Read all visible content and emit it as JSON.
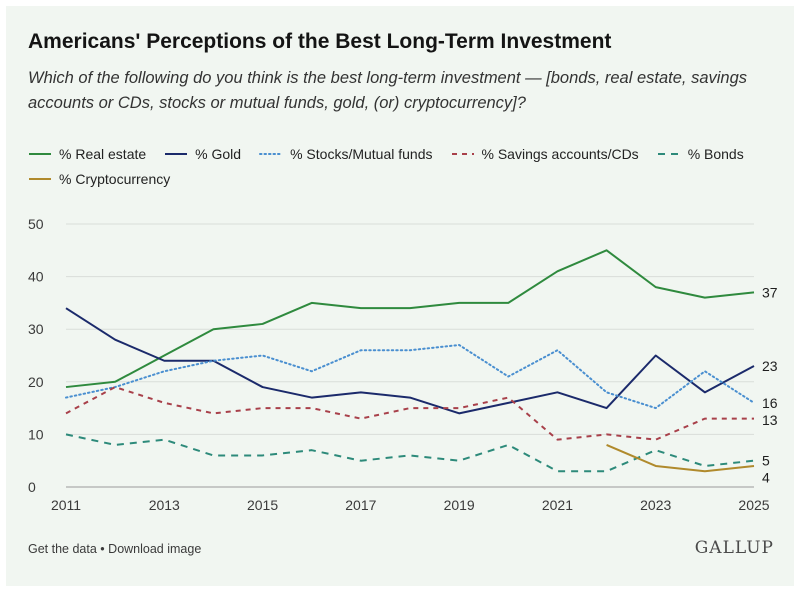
{
  "header": {
    "title": "Americans' Perceptions of the Best Long-Term Investment",
    "subtitle": "Which of the following do you think is the best long-term investment — [bonds, real estate, savings accounts or CDs, stocks or mutual funds, gold, (or) cryptocurrency]?"
  },
  "footer": {
    "get_data": "Get the data",
    "separator": "•",
    "download": "Download image",
    "brand": "GALLUP"
  },
  "chart_data": {
    "type": "line",
    "title": "Americans' Perceptions of the Best Long-Term Investment",
    "xlabel": "",
    "ylabel": "",
    "xlim": [
      2011,
      2025
    ],
    "ylim": [
      0,
      50
    ],
    "x_ticks": [
      2011,
      2013,
      2015,
      2017,
      2019,
      2021,
      2023,
      2025
    ],
    "y_ticks": [
      0,
      10,
      20,
      30,
      40,
      50
    ],
    "grid": "horizontal",
    "legend_position": "top-left",
    "series": [
      {
        "name": "% Real estate",
        "color": "#2f8a3e",
        "style": "solid",
        "x": [
          2011,
          2012,
          2013,
          2014,
          2015,
          2016,
          2017,
          2018,
          2019,
          2020,
          2021,
          2022,
          2023,
          2024,
          2025
        ],
        "values": [
          19,
          20,
          25,
          30,
          31,
          35,
          34,
          34,
          35,
          35,
          41,
          45,
          38,
          36,
          37
        ],
        "end_label": "37"
      },
      {
        "name": "% Gold",
        "color": "#1b2a6b",
        "style": "solid",
        "x": [
          2011,
          2012,
          2013,
          2014,
          2015,
          2016,
          2017,
          2018,
          2019,
          2020,
          2021,
          2022,
          2023,
          2024,
          2025
        ],
        "values": [
          34,
          28,
          24,
          24,
          19,
          17,
          18,
          17,
          14,
          16,
          18,
          15,
          25,
          18,
          23
        ],
        "end_label": "23"
      },
      {
        "name": "% Stocks/Mutual funds",
        "color": "#4a8fd0",
        "style": "dotted",
        "x": [
          2011,
          2012,
          2013,
          2014,
          2015,
          2016,
          2017,
          2018,
          2019,
          2020,
          2021,
          2022,
          2023,
          2024,
          2025
        ],
        "values": [
          17,
          19,
          22,
          24,
          25,
          22,
          26,
          26,
          27,
          21,
          26,
          18,
          15,
          22,
          16
        ],
        "end_label": "16"
      },
      {
        "name": "% Savings accounts/CDs",
        "color": "#a8404a",
        "style": "dashed",
        "x": [
          2011,
          2012,
          2013,
          2014,
          2015,
          2016,
          2017,
          2018,
          2019,
          2020,
          2021,
          2022,
          2023,
          2024,
          2025
        ],
        "values": [
          14,
          19,
          16,
          14,
          15,
          15,
          13,
          15,
          15,
          17,
          9,
          10,
          9,
          13,
          13
        ],
        "end_label": "13"
      },
      {
        "name": "% Bonds",
        "color": "#2d8a7a",
        "style": "dashed-long",
        "x": [
          2011,
          2012,
          2013,
          2014,
          2015,
          2016,
          2017,
          2018,
          2019,
          2020,
          2021,
          2022,
          2023,
          2024,
          2025
        ],
        "values": [
          10,
          8,
          9,
          6,
          6,
          7,
          5,
          6,
          5,
          8,
          3,
          3,
          7,
          4,
          5
        ],
        "end_label": "5"
      },
      {
        "name": "% Cryptocurrency",
        "color": "#b08a2c",
        "style": "solid",
        "x": [
          2022,
          2023,
          2024,
          2025
        ],
        "values": [
          8,
          4,
          3,
          4
        ],
        "end_label": "4"
      }
    ]
  }
}
